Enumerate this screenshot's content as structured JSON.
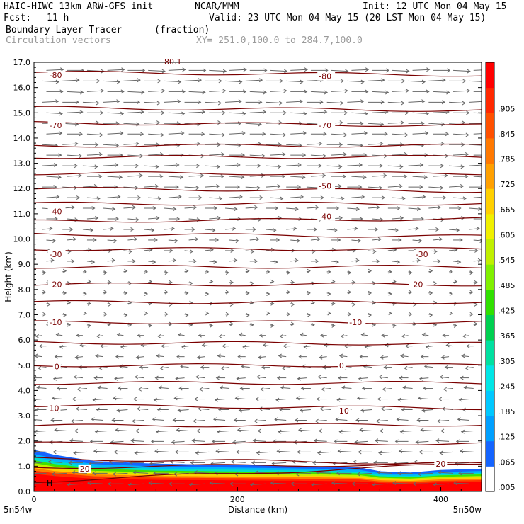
{
  "header": {
    "model": "HAIC-HIWC 13km ARW-GFS init",
    "org": "NCAR/MMM",
    "init": "Init: 12 UTC Mon 04 May 15",
    "fcst_label": "Fcst:",
    "fcst_value": "11 h",
    "valid": "Valid: 23 UTC Mon 04 May 15 (20 LST Mon 04 May 15)",
    "field": "Boundary Layer Tracer",
    "units": "(fraction)",
    "vectors": "Circulation vectors",
    "xy": "XY= 251.0,100.0 to 284.7,100.0"
  },
  "chart_data": {
    "type": "heatmap",
    "title": "Boundary Layer Tracer",
    "xlabel": "Distance (km)",
    "ylabel": "Height (km)",
    "xlim": [
      0,
      440
    ],
    "ylim": [
      0,
      17
    ],
    "x_ticks": [
      0,
      200,
      400
    ],
    "y_ticks": [
      "0.0",
      "1.0",
      "2.0",
      "3.0",
      "4.0",
      "5.0",
      "6.0",
      "7.0",
      "8.0",
      "9.0",
      "10.0",
      "11.0",
      "12.0",
      "13.0",
      "14.0",
      "15.0",
      "16.0",
      "17.0"
    ],
    "x_endpoints": [
      "5n54w",
      "5n50w"
    ],
    "colorbar_labels": [
      ".005",
      ".065",
      ".125",
      ".185",
      ".245",
      ".305",
      ".365",
      ".425",
      ".485",
      ".545",
      ".605",
      ".665",
      ".725",
      ".785",
      ".845",
      ".905",
      "–"
    ],
    "colorbar_colors": [
      "#ffffff",
      "#1464ff",
      "#00a0ff",
      "#00c8ff",
      "#00e6e6",
      "#00e0a0",
      "#00d050",
      "#30e000",
      "#80f000",
      "#c0f000",
      "#f0f000",
      "#ffd000",
      "#ffa000",
      "#ff7800",
      "#ff5000",
      "#ff2800",
      "#ff0000"
    ],
    "tracer_top_km": [
      [
        0,
        1.65
      ],
      [
        20,
        1.45
      ],
      [
        60,
        1.2
      ],
      [
        120,
        1.1
      ],
      [
        200,
        1.05
      ],
      [
        280,
        1.0
      ],
      [
        320,
        0.95
      ],
      [
        340,
        0.8
      ],
      [
        370,
        0.75
      ],
      [
        400,
        0.85
      ],
      [
        440,
        0.9
      ]
    ],
    "isotherm_labels": [
      {
        "value": "-80",
        "x": 15,
        "z": 16.5
      },
      {
        "value": "-80",
        "x": 280,
        "z": 16.45
      },
      {
        "value": "-70",
        "x": 15,
        "z": 14.5
      },
      {
        "value": "-70",
        "x": 280,
        "z": 14.5
      },
      {
        "value": "-50",
        "x": 280,
        "z": 12.1
      },
      {
        "value": "-40",
        "x": 15,
        "z": 11.1
      },
      {
        "value": "-40",
        "x": 280,
        "z": 10.9
      },
      {
        "value": "-30",
        "x": 15,
        "z": 9.4
      },
      {
        "value": "-30",
        "x": 375,
        "z": 9.4
      },
      {
        "value": "-20",
        "x": 15,
        "z": 8.2
      },
      {
        "value": "-20",
        "x": 370,
        "z": 8.2
      },
      {
        "value": "-10",
        "x": 15,
        "z": 6.7
      },
      {
        "value": "-10",
        "x": 310,
        "z": 6.7
      },
      {
        "value": "0",
        "x": 20,
        "z": 4.95
      },
      {
        "value": "0",
        "x": 300,
        "z": 5.0
      },
      {
        "value": "10",
        "x": 15,
        "z": 3.3
      },
      {
        "value": "10",
        "x": 300,
        "z": 3.2
      },
      {
        "value": "20",
        "x": 45,
        "z": 0.9
      },
      {
        "value": "20",
        "x": 395,
        "z": 1.1
      }
    ],
    "isotherms_left_z": [
      16.6,
      15.2,
      14.6,
      13.7,
      13.25,
      12.6,
      12.0,
      11.4,
      10.7,
      10.2,
      9.6,
      8.9,
      8.2,
      7.5,
      6.7,
      5.9,
      5.0,
      4.3,
      3.4,
      2.6,
      1.9,
      1.3,
      0.95,
      0.4
    ],
    "isotherms_right_z": [
      16.5,
      15.1,
      14.5,
      13.7,
      13.25,
      12.6,
      11.9,
      11.4,
      10.8,
      10.1,
      9.6,
      8.9,
      8.2,
      7.5,
      6.7,
      5.85,
      5.0,
      4.3,
      3.3,
      2.65,
      1.9,
      1.1
    ],
    "peak_marker": "80.1",
    "high_marker": "H"
  }
}
